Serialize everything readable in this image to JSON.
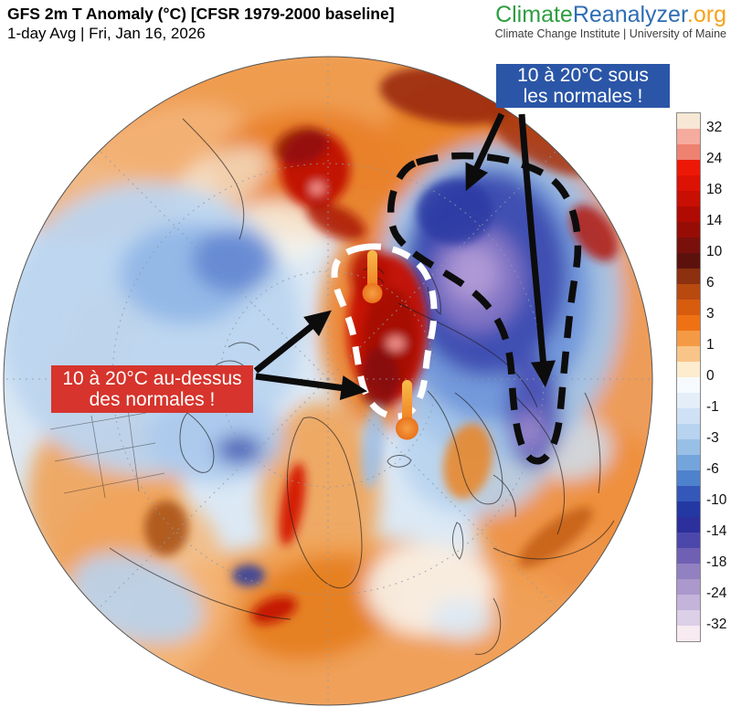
{
  "header": {
    "title": "GFS 2m T Anomaly (°C) [CFSR 1979-2000 baseline]",
    "subtitle": "1-day Avg | Fri, Jan 16, 2026",
    "logo": {
      "part1": "Climate",
      "part2": "Reanalyzer",
      "part3": ".org",
      "tagline": "Climate Change Institute | University of Maine",
      "colors": {
        "part1": "#2e9e40",
        "part2": "#2e6db4",
        "part3": "#f7a21b"
      }
    }
  },
  "annotations": {
    "cold_label": {
      "line1": "10 à 20°C sous",
      "line2": "les normales !",
      "bg": "#2b56a7",
      "text_color": "#ffffff"
    },
    "warm_label": {
      "line1": "10 à 20°C au-dessus",
      "line2": "des normales !",
      "bg": "#d6342c",
      "text_color": "#ffffff"
    },
    "arrow_color": "#0c0c0c",
    "warm_outline_color": "#ffffff",
    "cold_outline_color": "#0d0d0d",
    "thermometer_color": "#ee7c1f"
  },
  "colorbar": {
    "unit": "°C anomaly",
    "ticks": [
      "32",
      "24",
      "18",
      "14",
      "10",
      "6",
      "3",
      "1",
      "0",
      "-1",
      "-3",
      "-6",
      "-10",
      "-14",
      "-18",
      "-24",
      "-32"
    ],
    "segment_colors": [
      "#f6e8d5",
      "#f5ab9e",
      "#ef8170",
      "#ee1806",
      "#dc1204",
      "#c90e03",
      "#b00b03",
      "#960d06",
      "#7a100c",
      "#5d110d",
      "#8c300f",
      "#b84a10",
      "#d85c0e",
      "#ee7214",
      "#f59a44",
      "#f9c488",
      "#fdeccd",
      "#f7fafd",
      "#e4eef9",
      "#cfe1f4",
      "#b7d3ef",
      "#98c0e7",
      "#74a4dc",
      "#4f82cc",
      "#3358b9",
      "#2438a3",
      "#2c2f9c",
      "#4c48ab",
      "#6f60b4",
      "#9181c1",
      "#ab98cc",
      "#c4b3da",
      "#dccfe8",
      "#f7eaf0"
    ]
  }
}
